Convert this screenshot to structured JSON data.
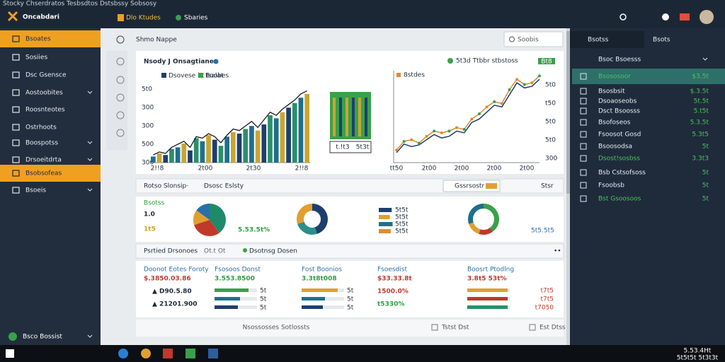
{
  "titlebar": {
    "caption": "Stocky Chserdratos Tesbsdtos Dstsbssy Sobsosy",
    "app_name": "Oncabdari",
    "tabs": [
      "Dlo Ktudes",
      "Sbaries"
    ]
  },
  "sidebar": {
    "items": [
      {
        "label": "Bsoates",
        "active": true,
        "chevron": false
      },
      {
        "label": "Sosiies",
        "active": false,
        "chevron": false
      },
      {
        "label": "Dsc Gsensce",
        "active": false,
        "chevron": false
      },
      {
        "label": "Aostoobites",
        "active": false,
        "chevron": true
      },
      {
        "label": "Roosnteotes",
        "active": false,
        "chevron": false
      },
      {
        "label": "Ostrhoots",
        "active": false,
        "chevron": false
      },
      {
        "label": "Boospotss",
        "active": false,
        "chevron": true
      },
      {
        "label": "Drsoeitdrta",
        "active": false,
        "chevron": true
      },
      {
        "label": "Bsobsofeas",
        "active": true,
        "chevron": false
      },
      {
        "label": "Bsoeis",
        "active": false,
        "chevron": true
      }
    ],
    "footer": "Bsco Bossist"
  },
  "page": {
    "title": "Shmo Nappe",
    "search": "Soobis"
  },
  "overview": {
    "title": "Nsody J Onsagtiane",
    "legend": [
      {
        "name": "Dsovese bt Isalat",
        "color": "#1e3f6e"
      },
      {
        "name": "Boobes",
        "color": "#3aa04a"
      }
    ],
    "bar_chart": {
      "y_labels": [
        "5t0",
        "300",
        "300",
        "500",
        "300"
      ],
      "x_labels": [
        "2!!8",
        "2t00",
        "2t30",
        "2!!8"
      ],
      "ylim": [
        0,
        100
      ],
      "values": [
        8,
        12,
        10,
        18,
        20,
        25,
        16,
        32,
        28,
        36,
        30,
        22,
        34,
        40,
        38,
        44,
        48,
        42,
        50,
        62,
        58,
        66,
        72,
        78,
        85,
        90
      ],
      "colors": [
        "#1f6f8b",
        "#c8a632",
        "#1e3f6e",
        "#2a8f6a"
      ],
      "trend": [
        10,
        14,
        12,
        20,
        24,
        28,
        20,
        34,
        32,
        38,
        34,
        26,
        36,
        44,
        42,
        48,
        54,
        46,
        56,
        66,
        62,
        70,
        76,
        82,
        90,
        94
      ]
    },
    "box_caption": [
      "t.!t3",
      "5t3t"
    ],
    "line_chart": {
      "caption": "5t3d Ttbbr stbstoss",
      "badge": "Bt8",
      "legend": "8stdes",
      "y_labels": [
        "5t0",
        "t50",
        "5t0",
        "5t0",
        "300"
      ],
      "x_labels": [
        "tt50",
        "2t00",
        "2t00",
        "2t00",
        "2t00"
      ],
      "ylim": [
        0,
        100
      ],
      "series": [
        {
          "color": "#1e3f6e",
          "values": [
            5,
            15,
            12,
            14,
            20,
            26,
            22,
            24,
            30,
            28,
            40,
            44,
            52,
            60,
            58,
            72,
            86,
            80,
            82,
            90
          ]
        },
        {
          "color": "#e08a30",
          "values": [
            8,
            18,
            20,
            16,
            24,
            30,
            28,
            30,
            34,
            32,
            44,
            50,
            58,
            64,
            62,
            78,
            90,
            84,
            86,
            94
          ]
        }
      ]
    }
  },
  "summary": {
    "title": "Rotso Slonsip·",
    "subtitle": "Dsosc Eslsty",
    "dropdown": "Gssrsostr",
    "link": "Stsr",
    "kpi": {
      "label": "Bsotss",
      "primary": "1.0",
      "secondary": "1t5"
    },
    "pie": {
      "caption": "5.53.5t%",
      "slices": [
        {
          "value": 40,
          "color": "#1f8a6a"
        },
        {
          "value": 30,
          "color": "#c0392b"
        },
        {
          "value": 15,
          "color": "#e0a030"
        },
        {
          "value": 15,
          "color": "#2a6fa8"
        }
      ]
    },
    "donut": {
      "slices": [
        {
          "value": 45,
          "color": "#1e3f6e"
        },
        {
          "value": 25,
          "color": "#2a8f8a"
        },
        {
          "value": 30,
          "color": "#e0a030"
        }
      ]
    },
    "mini_bars": [
      {
        "value": 70,
        "color": "#1e3f6e",
        "label": "5t5t"
      },
      {
        "value": 60,
        "color": "#e0a030",
        "label": "5t5t"
      },
      {
        "value": 75,
        "color": "#1f6f8b",
        "label": "5t5t"
      },
      {
        "value": 65,
        "color": "#e08a30",
        "label": "5t5t"
      }
    ],
    "ring": {
      "caption": "5t5.5t5",
      "slices": [
        {
          "value": 40,
          "color": "#3aa04a"
        },
        {
          "value": 15,
          "color": "#c0392b"
        },
        {
          "value": 15,
          "color": "#e0a030"
        },
        {
          "value": 30,
          "color": "#1f6f8b"
        }
      ]
    }
  },
  "details": {
    "title": "Psrtied Drsonoes",
    "meta": "Ot.t Ot",
    "status": "Dsotnsg Dosen",
    "more": "••",
    "columns": [
      {
        "header": "Doonot Eotes Foroty",
        "texts": [
          {
            "text": "$.3850.03.86",
            "color": "#c0392b"
          },
          {
            "text": "▲ D90.5.80",
            "color": "#1e2a3a"
          },
          {
            "text": "▲ 21201.900",
            "color": "#1e2a3a"
          }
        ],
        "bars": [],
        "bar_labels": []
      },
      {
        "header": "Fsosoos Donst",
        "texts": [
          {
            "text": "3.553.8500",
            "color": "#2e9e3e"
          }
        ],
        "bars": [
          {
            "value": 80,
            "color": "#3aa04a"
          },
          {
            "value": 60,
            "color": "#1f6f8b"
          },
          {
            "value": 55,
            "color": "#1e3f6e"
          }
        ],
        "bar_labels": [
          "5t",
          "5t",
          "5t"
        ]
      },
      {
        "header": "Fost Boonios",
        "texts": [
          {
            "text": "3.3t8t008",
            "color": "#2e9e3e"
          }
        ],
        "bars": [
          {
            "value": 85,
            "color": "#e0a030"
          },
          {
            "value": 55,
            "color": "#1f6f8b"
          },
          {
            "value": 50,
            "color": "#1e3f6e"
          }
        ],
        "bar_labels": [
          "5t",
          "5t",
          "5t"
        ]
      },
      {
        "header": "Fsoesdist",
        "texts": [
          {
            "text": "$33.33.8t",
            "color": "#c0392b"
          },
          {
            "text": "1500.0%",
            "color": "#c0392b"
          },
          {
            "text": "t5330%",
            "color": "#2e9e3e"
          }
        ],
        "bars": [],
        "bar_labels": []
      },
      {
        "header": "Boosrt Ptodlng",
        "texts": [
          {
            "text": "3.8t5 53t%",
            "color": "#c0392b"
          }
        ],
        "bars": [
          {
            "value": 95,
            "color": "#e0a030"
          },
          {
            "value": 95,
            "color": "#c0392b"
          },
          {
            "value": 95,
            "color": "#2a8f6a"
          }
        ],
        "bar_labels": [
          "t7t5",
          "t7t5",
          "t7050"
        ]
      }
    ]
  },
  "footer": {
    "center": "Nsossosses Sotlossts",
    "actions": [
      "Tstst Dst",
      "Est Dtss"
    ]
  },
  "right_panel": {
    "tabs": [
      "Bsotss",
      "Bsots"
    ],
    "header": "Bsoc Bsoesss",
    "rows": [
      {
        "label": "Bsososoor",
        "value": "$3.5t",
        "accent": true,
        "highlight": true
      },
      {
        "label": "Bsosbsit",
        "value": "$.3.5t",
        "accent": false,
        "highlight": false
      },
      {
        "label": "Dsoaoseobs",
        "value": "5t.5t",
        "accent": false,
        "highlight": false
      },
      {
        "label": "Dsct Bsoosss",
        "value": "5.t5t",
        "accent": false,
        "highlight": false
      },
      {
        "label": "Bsofoseos",
        "value": "5.3.5t",
        "accent": false,
        "highlight": false
      },
      {
        "label": "Fsoosot Gosd",
        "value": "5.3t5",
        "accent": false,
        "highlight": false
      },
      {
        "label": "Bsoosodsa",
        "value": "5t",
        "accent": false,
        "highlight": false
      },
      {
        "label": "Dsost!sosbss",
        "value": "3.3t3",
        "accent": true,
        "highlight": false
      },
      {
        "label": "Bsb Cstsofsoss",
        "value": "5t",
        "accent": false,
        "highlight": false
      },
      {
        "label": "Fsoobsb",
        "value": "5t",
        "accent": false,
        "highlight": false
      },
      {
        "label": "Bst Gsoosoos",
        "value": "5t",
        "accent": true,
        "highlight": false
      }
    ]
  },
  "taskbar": {
    "clock": [
      "5.53.4Ht",
      "5t5t5t 5t3t3t"
    ]
  }
}
